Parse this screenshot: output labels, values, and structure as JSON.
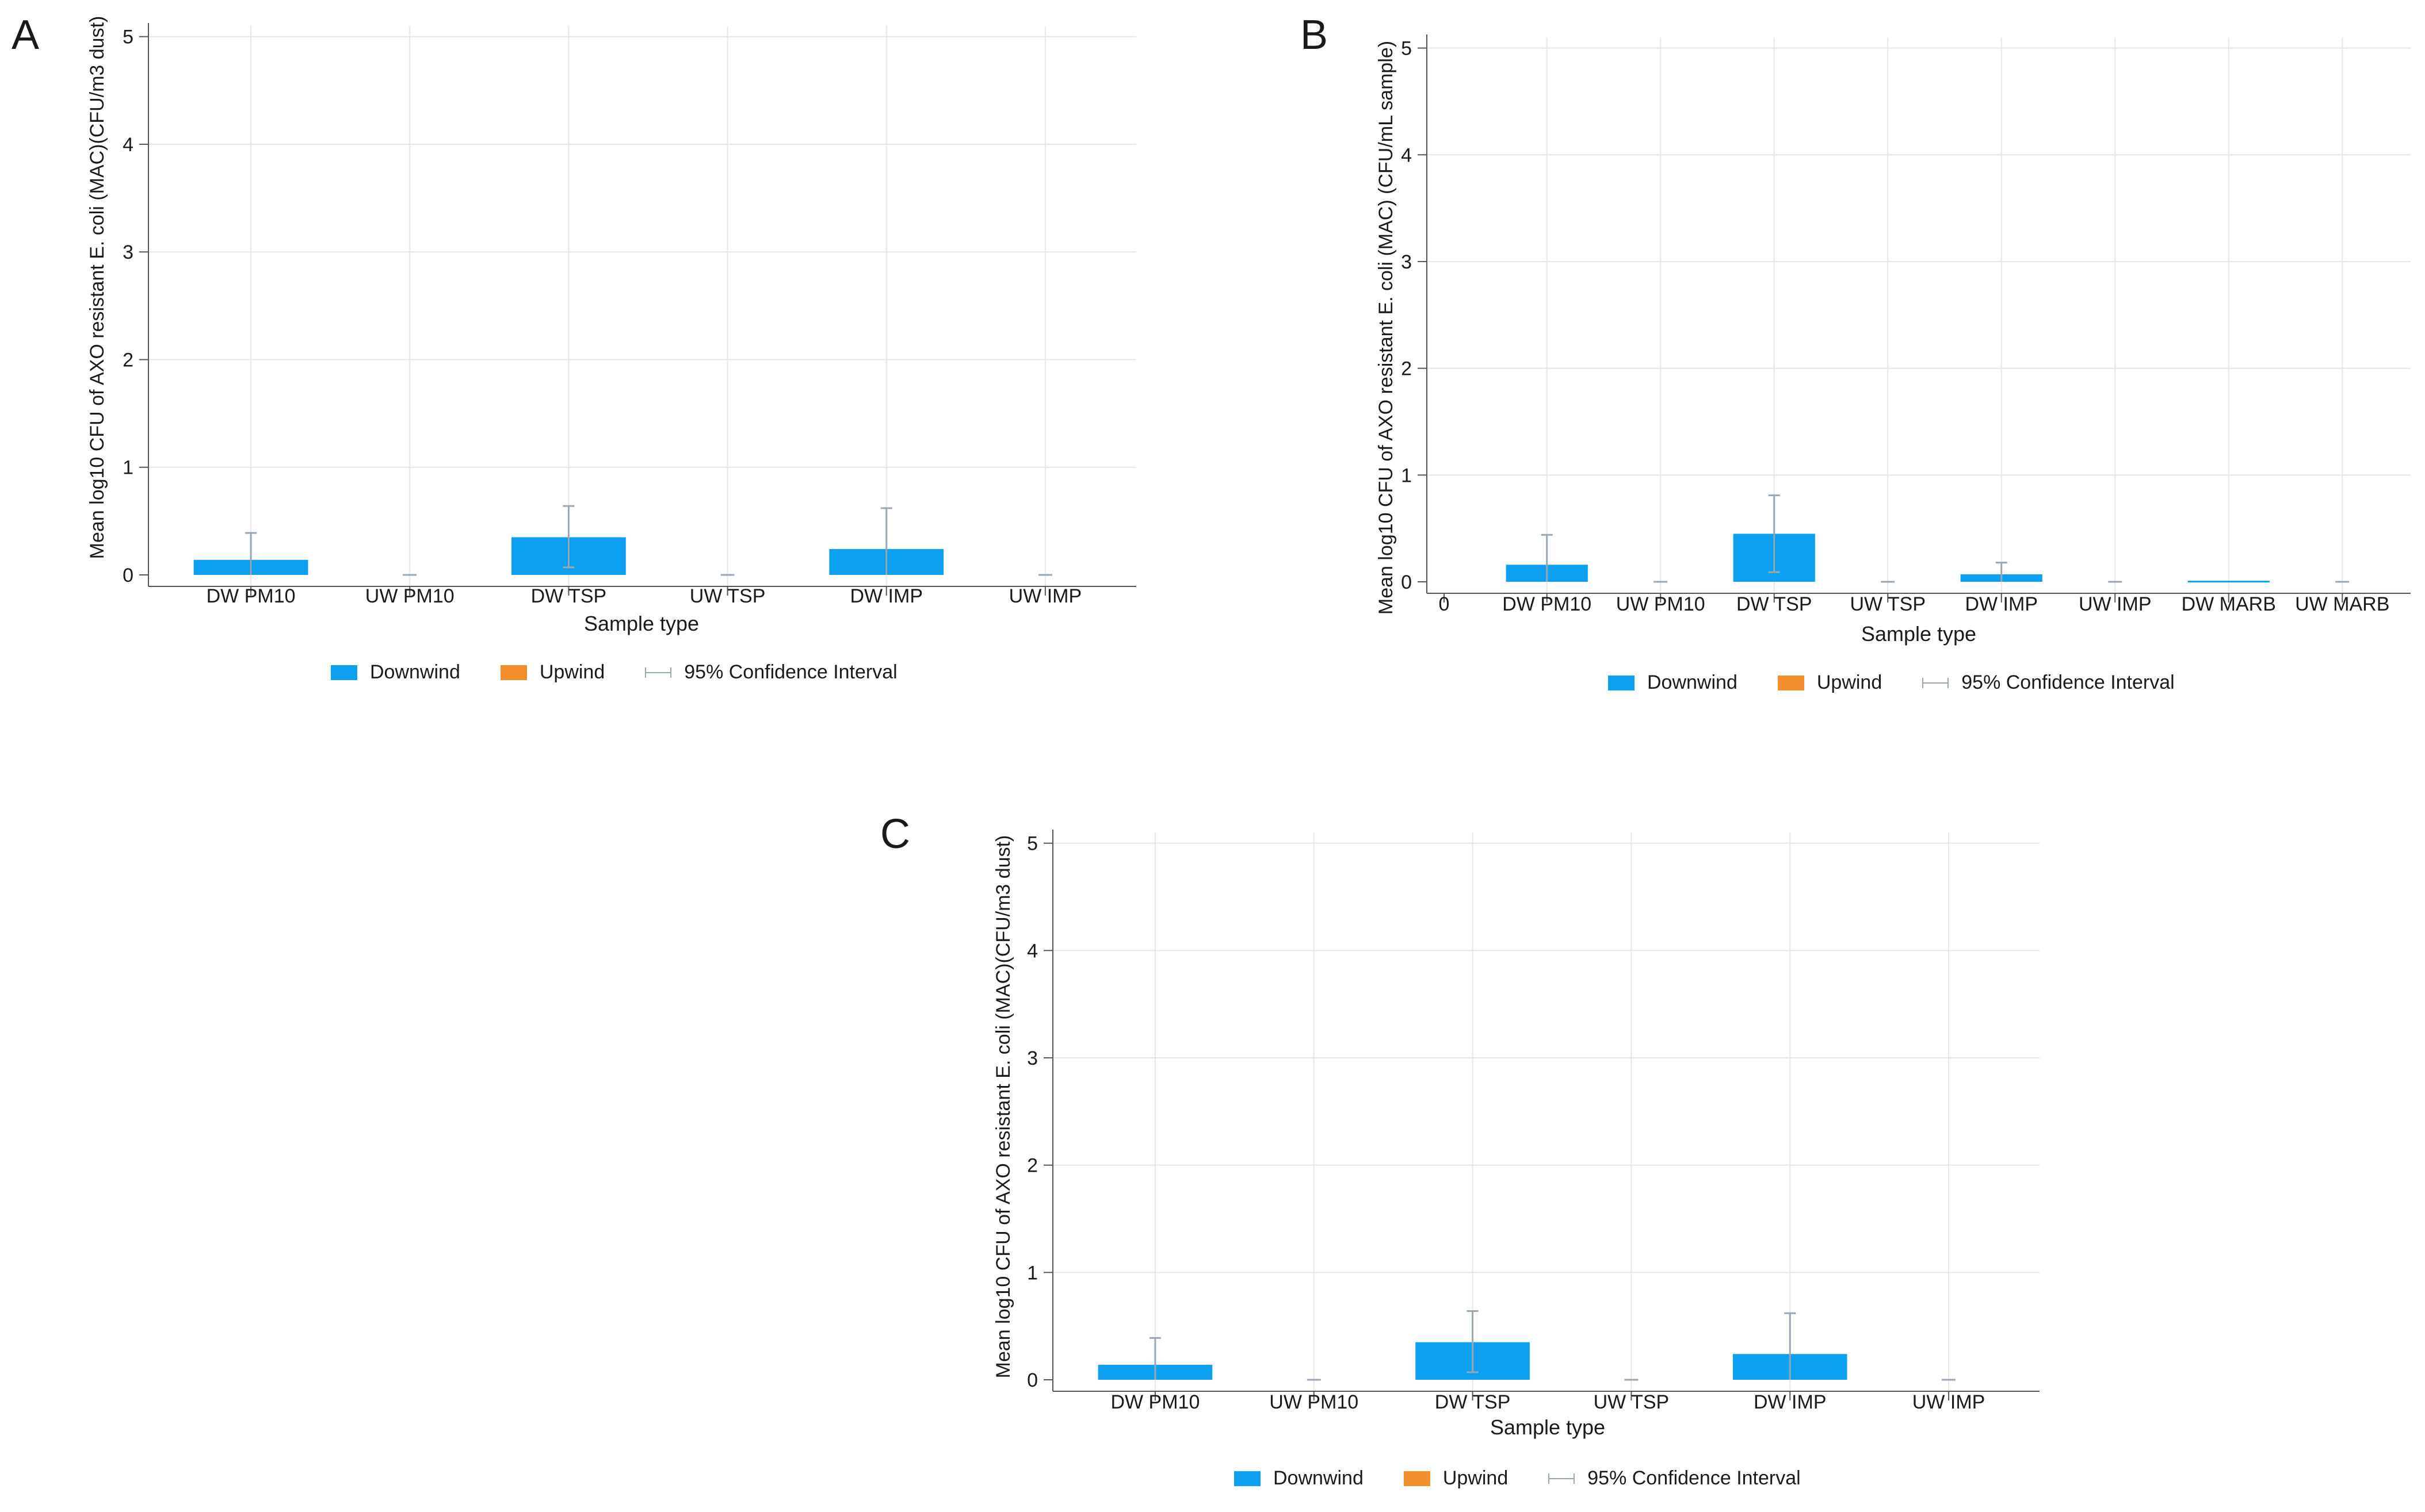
{
  "colors": {
    "downwind": "#0da0f0",
    "upwind": "#f28e2b",
    "ci": "#9aa6b2",
    "grid": "#e6e6e6",
    "axis": "#555555"
  },
  "panels": [
    {
      "letter": "A",
      "ylabel": "Mean log10 CFU of AXO resistant E. coli (MAC)(CFU/m3 dust)",
      "xlabel": "Sample type",
      "legend": {
        "downwind": "Downwind",
        "upwind": "Upwind",
        "ci": "95% Confidence Interval"
      },
      "chart_data": {
        "type": "bar",
        "categories": [
          "DW PM10",
          "UW PM10",
          "DW TSP",
          "UW TSP",
          "DW IMP",
          "UW IMP"
        ],
        "groups": [
          "Downwind",
          "Upwind",
          "Downwind",
          "Upwind",
          "Downwind",
          "Upwind"
        ],
        "values": [
          0.14,
          0,
          0.35,
          0,
          0.24,
          0
        ],
        "ci_low": [
          0,
          0,
          0.07,
          0,
          0,
          0
        ],
        "ci_high": [
          0.39,
          0,
          0.64,
          0,
          0.62,
          0
        ],
        "ylim": [
          0,
          5.1
        ],
        "yticks": [
          0,
          1,
          2,
          3,
          4,
          5
        ],
        "xlim": null
      }
    },
    {
      "letter": "B",
      "ylabel": "Mean log10 CFU of AXO resistant E. coli (MAC) (CFU/mL sample)",
      "xlabel": "Sample type",
      "legend": {
        "downwind": "Downwind",
        "upwind": "Upwind",
        "ci": "95% Confidence Interval"
      },
      "chart_data": {
        "type": "bar",
        "categories": [
          "DW PM10",
          "UW PM10",
          "DW TSP",
          "UW TSP",
          "DW IMP",
          "UW IMP",
          "DW MARB",
          "UW MARB"
        ],
        "groups": [
          "Downwind",
          "Upwind",
          "Downwind",
          "Upwind",
          "Downwind",
          "Upwind",
          "Downwind",
          "Upwind"
        ],
        "values": [
          0.16,
          0,
          0.45,
          0,
          0.07,
          0,
          0.01,
          0
        ],
        "ci_low": [
          0,
          0,
          0.09,
          0,
          0,
          0,
          0,
          0
        ],
        "ci_high": [
          0.44,
          0,
          0.81,
          0,
          0.18,
          0,
          0.01,
          0
        ],
        "ylim": [
          0,
          5.1
        ],
        "yticks": [
          0,
          1,
          2,
          3,
          4,
          5
        ],
        "xtick_zero": "0"
      }
    },
    {
      "letter": "C",
      "ylabel": "Mean log10 CFU of AXO resistant E. coli (MAC)(CFU/m3 dust)",
      "xlabel": "Sample type",
      "legend": {
        "downwind": "Downwind",
        "upwind": "Upwind",
        "ci": "95% Confidence Interval"
      },
      "chart_data": {
        "type": "bar",
        "categories": [
          "DW PM10",
          "UW PM10",
          "DW TSP",
          "UW TSP",
          "DW IMP",
          "UW IMP"
        ],
        "groups": [
          "Downwind",
          "Upwind",
          "Downwind",
          "Upwind",
          "Downwind",
          "Upwind"
        ],
        "values": [
          0.14,
          0,
          0.35,
          0,
          0.24,
          0
        ],
        "ci_low": [
          0,
          0,
          0.07,
          0,
          0,
          0
        ],
        "ci_high": [
          0.39,
          0,
          0.64,
          0,
          0.62,
          0
        ],
        "ylim": [
          0,
          5.1
        ],
        "yticks": [
          0,
          1,
          2,
          3,
          4,
          5
        ]
      }
    }
  ]
}
